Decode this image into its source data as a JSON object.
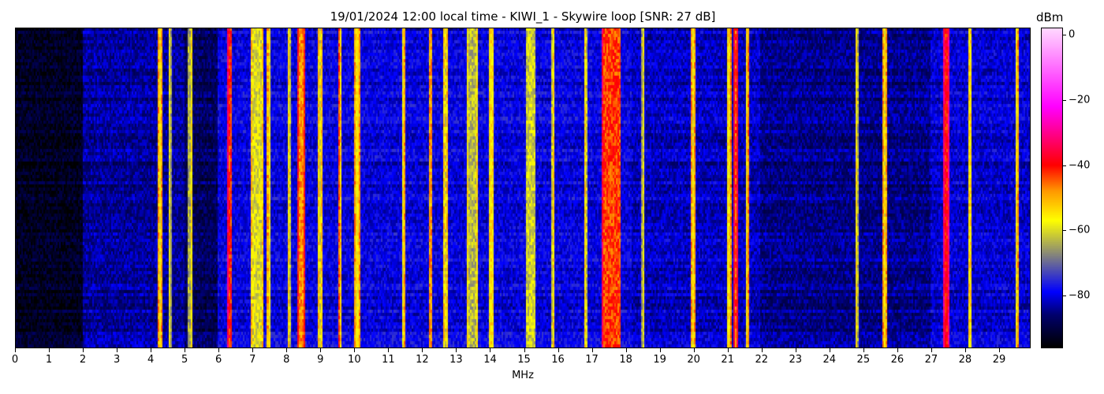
{
  "chart_data": {
    "type": "heatmap",
    "title": "19/01/2024 12:00 local time - KIWI_1 - Skywire loop [SNR: 27 dB]",
    "xlabel": "MHz",
    "xlim": [
      0,
      29.93
    ],
    "xticks": [
      "0",
      "1",
      "2",
      "3",
      "4",
      "5",
      "6",
      "7",
      "8",
      "9",
      "10",
      "11",
      "12",
      "13",
      "14",
      "15",
      "16",
      "17",
      "18",
      "19",
      "20",
      "21",
      "22",
      "23",
      "24",
      "25",
      "26",
      "27",
      "28",
      "29"
    ],
    "colorbar": {
      "label": "dBm",
      "range": [
        -96,
        2
      ],
      "ticks": [
        "0",
        "−20",
        "−40",
        "−60",
        "−80"
      ],
      "tick_values": [
        0,
        -20,
        -40,
        -60,
        -80
      ],
      "colormap": [
        {
          "v": -96,
          "c": "#000000"
        },
        {
          "v": -86,
          "c": "#00006e"
        },
        {
          "v": -79,
          "c": "#0000ff"
        },
        {
          "v": -68,
          "c": "#808080"
        },
        {
          "v": -57,
          "c": "#ffff00"
        },
        {
          "v": -48,
          "c": "#ff9900"
        },
        {
          "v": -40,
          "c": "#ff0000"
        },
        {
          "v": -22,
          "c": "#ff00ff"
        },
        {
          "v": 2,
          "c": "#ffd8ff"
        }
      ]
    },
    "noise_floor_dBm": [
      {
        "from": 0,
        "to": 2,
        "level": -93
      },
      {
        "from": 2,
        "to": 5,
        "level": -84
      },
      {
        "from": 5,
        "to": 6,
        "level": -88
      },
      {
        "from": 6,
        "to": 18.2,
        "level": -80
      },
      {
        "from": 18.2,
        "to": 22,
        "level": -82
      },
      {
        "from": 22,
        "to": 27,
        "level": -85
      },
      {
        "from": 27,
        "to": 30,
        "level": -81
      }
    ],
    "signals": [
      {
        "freq": 4.28,
        "width": 0.04,
        "level": -57
      },
      {
        "freq": 4.6,
        "width": 0.03,
        "level": -66
      },
      {
        "freq": 5.15,
        "width": 0.08,
        "level": -64
      },
      {
        "freq": 6.35,
        "width": 0.1,
        "level": -42
      },
      {
        "freq": 7.15,
        "width": 0.3,
        "level": -60
      },
      {
        "freq": 7.5,
        "width": 0.04,
        "level": -58
      },
      {
        "freq": 8.1,
        "width": 0.06,
        "level": -62
      },
      {
        "freq": 8.45,
        "width": 0.15,
        "level": -48
      },
      {
        "freq": 9.0,
        "width": 0.04,
        "level": -60
      },
      {
        "freq": 9.6,
        "width": 0.05,
        "level": -52
      },
      {
        "freq": 10.1,
        "width": 0.12,
        "level": -56
      },
      {
        "freq": 11.45,
        "width": 0.04,
        "level": -57
      },
      {
        "freq": 12.25,
        "width": 0.04,
        "level": -57
      },
      {
        "freq": 12.7,
        "width": 0.06,
        "level": -60
      },
      {
        "freq": 13.5,
        "width": 0.25,
        "level": -63
      },
      {
        "freq": 14.05,
        "width": 0.1,
        "level": -55
      },
      {
        "freq": 15.2,
        "width": 0.25,
        "level": -61
      },
      {
        "freq": 15.85,
        "width": 0.05,
        "level": -62
      },
      {
        "freq": 16.85,
        "width": 0.04,
        "level": -62
      },
      {
        "freq": 17.6,
        "width": 0.5,
        "level": -43
      },
      {
        "freq": 18.5,
        "width": 0.04,
        "level": -66
      },
      {
        "freq": 20.0,
        "width": 0.05,
        "level": -57
      },
      {
        "freq": 21.05,
        "width": 0.07,
        "level": -55
      },
      {
        "freq": 21.25,
        "width": 0.06,
        "level": -45
      },
      {
        "freq": 21.6,
        "width": 0.04,
        "level": -55
      },
      {
        "freq": 24.85,
        "width": 0.03,
        "level": -64
      },
      {
        "freq": 25.65,
        "width": 0.04,
        "level": -57
      },
      {
        "freq": 27.45,
        "width": 0.12,
        "level": -40
      },
      {
        "freq": 28.15,
        "width": 0.04,
        "level": -62
      },
      {
        "freq": 29.55,
        "width": 0.04,
        "level": -57
      }
    ]
  }
}
